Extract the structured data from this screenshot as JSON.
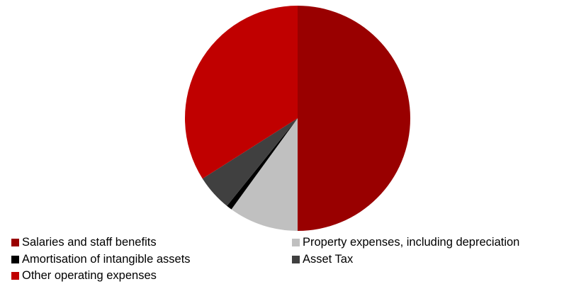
{
  "chart_data": {
    "type": "pie",
    "slices": [
      {
        "label": "Salaries and staff benefits",
        "value": 50.0,
        "color": "#990000"
      },
      {
        "label": "Property expenses, including depreciation",
        "value": 10.0,
        "color": "#C0C0C0"
      },
      {
        "label": "Amortisation of intangible assets",
        "value": 0.8,
        "color": "#000000"
      },
      {
        "label": "Asset Tax",
        "value": 5.2,
        "color": "#404040"
      },
      {
        "label": "Other operating expenses",
        "value": 34.0,
        "color": "#C00000"
      }
    ],
    "legend_position": "bottom"
  }
}
